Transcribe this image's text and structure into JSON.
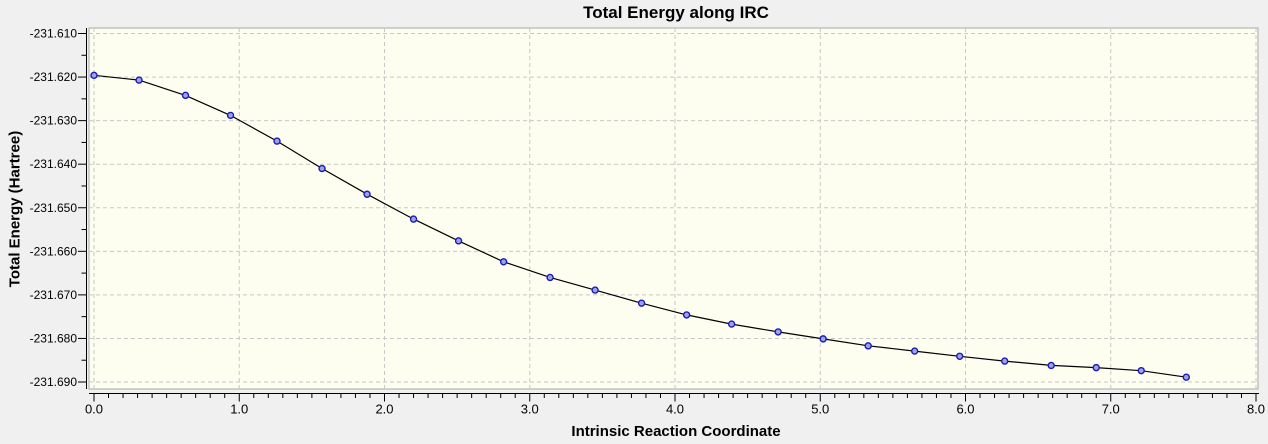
{
  "window": {
    "background_color": "#f0f0f0",
    "plot_background_color": "#fdfdf0",
    "plot_border_color": "#a9a9a9",
    "gridline_color": "#c8c8c8",
    "axis_color": "#000000"
  },
  "chart": {
    "title": "Total Energy along IRC",
    "xlabel": "Intrinsic Reaction Coordinate",
    "ylabel": "Total Energy (Hartree)"
  },
  "chart_data": {
    "type": "line",
    "title": "Total Energy along IRC",
    "xlabel": "Intrinsic Reaction Coordinate",
    "ylabel": "Total Energy (Hartree)",
    "xlim": [
      0.0,
      8.0
    ],
    "ylim": [
      -231.69,
      -231.61
    ],
    "grid": "dashed",
    "legend": "none",
    "x_ticks": [
      {
        "value": 0.0,
        "label": "0.0"
      },
      {
        "value": 1.0,
        "label": "1.0"
      },
      {
        "value": 2.0,
        "label": "2.0"
      },
      {
        "value": 3.0,
        "label": "3.0"
      },
      {
        "value": 4.0,
        "label": "4.0"
      },
      {
        "value": 5.0,
        "label": "5.0"
      },
      {
        "value": 6.0,
        "label": "6.0"
      },
      {
        "value": 7.0,
        "label": "7.0"
      },
      {
        "value": 8.0,
        "label": "8.0"
      }
    ],
    "x_minor_step": 0.1,
    "y_ticks": [
      {
        "value": -231.61,
        "label": "-231.610"
      },
      {
        "value": -231.62,
        "label": "-231.620"
      },
      {
        "value": -231.63,
        "label": "-231.630"
      },
      {
        "value": -231.64,
        "label": "-231.640"
      },
      {
        "value": -231.65,
        "label": "-231.650"
      },
      {
        "value": -231.66,
        "label": "-231.660"
      },
      {
        "value": -231.67,
        "label": "-231.670"
      },
      {
        "value": -231.68,
        "label": "-231.680"
      },
      {
        "value": -231.69,
        "label": "-231.690"
      }
    ],
    "y_minor_step": 0.005,
    "series": [
      {
        "name": "Total Energy",
        "line_color": "#000000",
        "marker": "circle",
        "marker_fill": "#9aa4ec",
        "marker_edge": "#1c1cb0",
        "x": [
          0.0,
          0.31,
          0.63,
          0.94,
          1.26,
          1.57,
          1.88,
          2.2,
          2.51,
          2.82,
          3.14,
          3.45,
          3.77,
          4.08,
          4.39,
          4.71,
          5.02,
          5.33,
          5.65,
          5.96,
          6.27,
          6.59,
          6.9,
          7.21,
          7.52
        ],
        "y": [
          -231.6196,
          -231.6207,
          -231.6242,
          -231.6288,
          -231.6347,
          -231.641,
          -231.6469,
          -231.6526,
          -231.6576,
          -231.6624,
          -231.666,
          -231.6689,
          -231.6719,
          -231.6746,
          -231.6767,
          -231.6785,
          -231.6801,
          -231.6817,
          -231.6829,
          -231.6841,
          -231.6852,
          -231.6862,
          -231.6867,
          -231.6874,
          -231.6889
        ]
      }
    ]
  }
}
